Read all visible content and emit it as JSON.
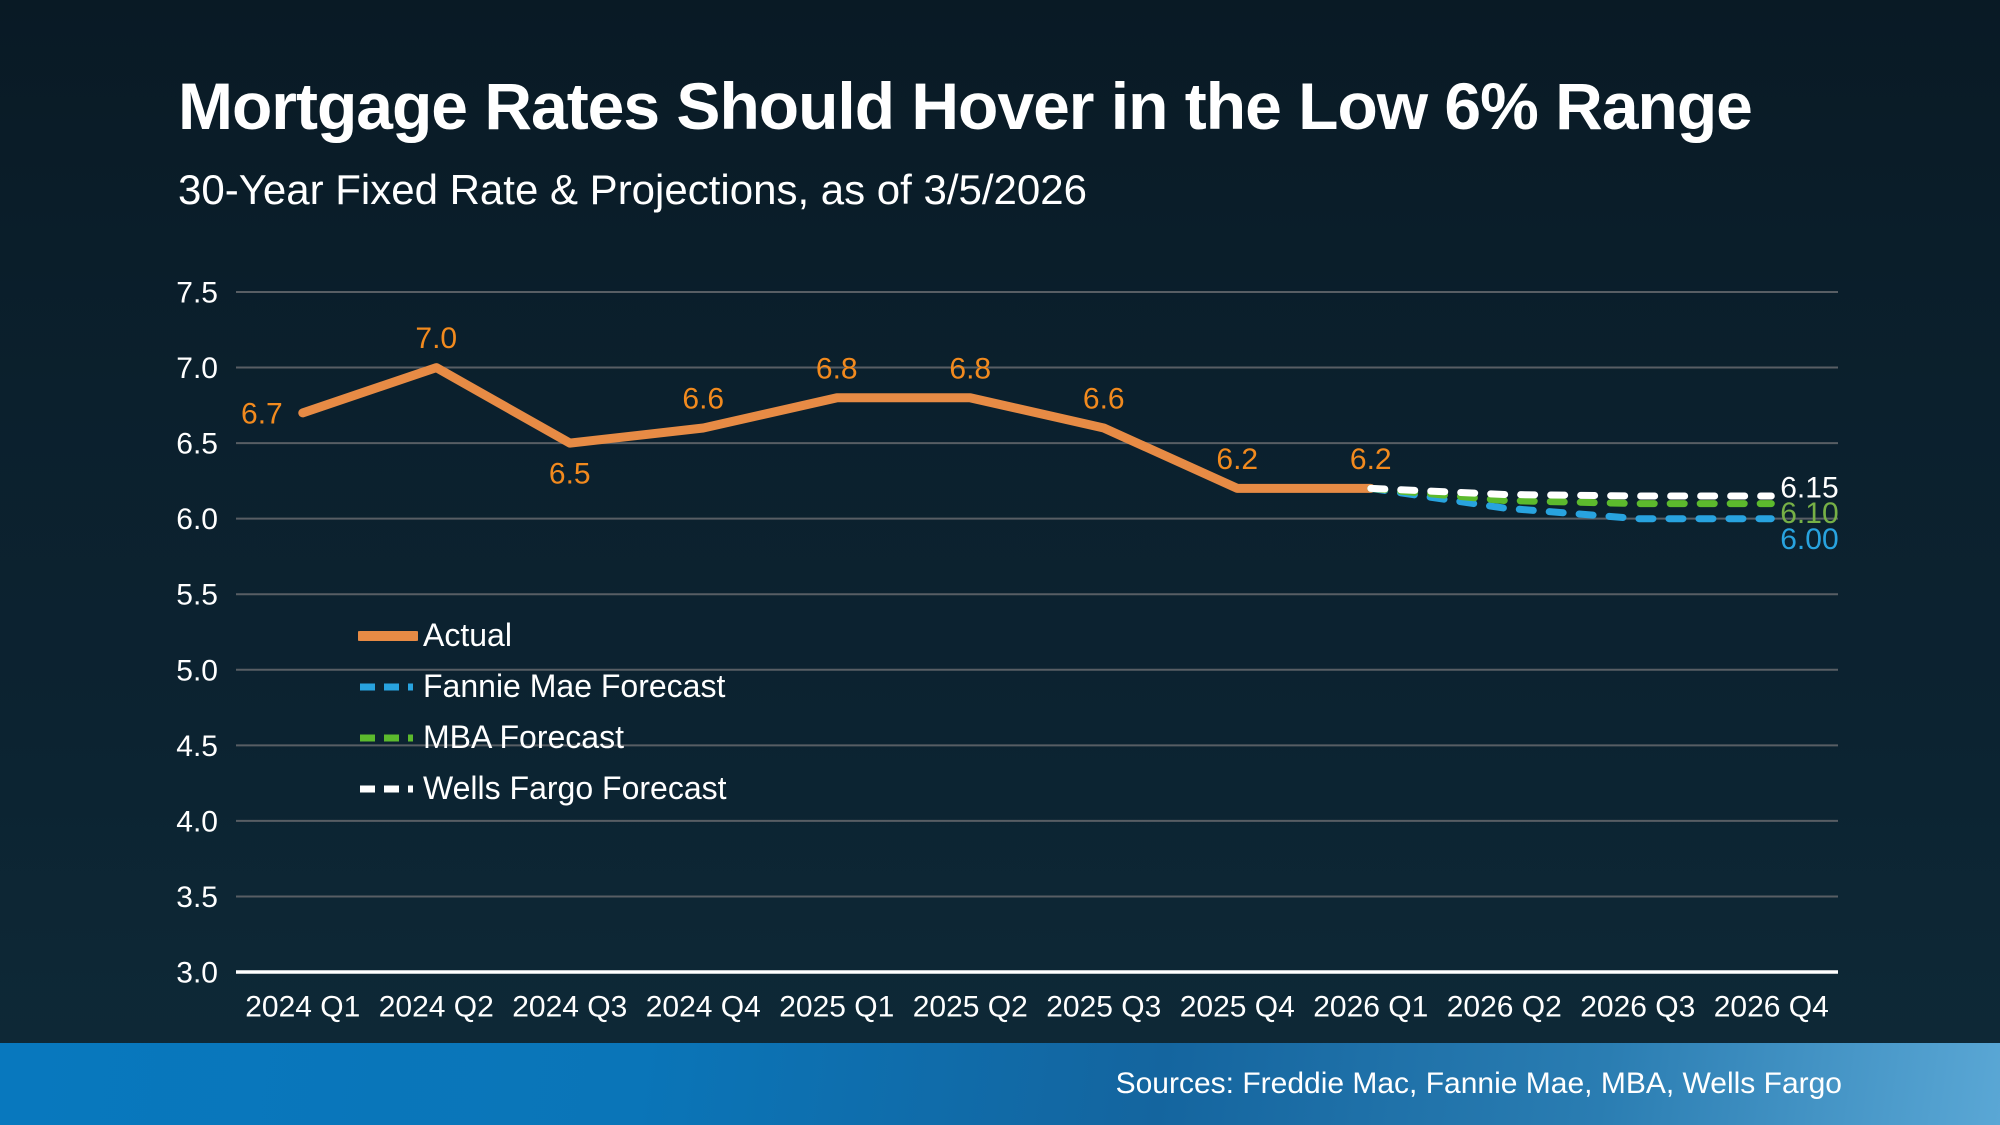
{
  "slide": {
    "title": "Mortgage Rates Should Hover in the Low 6% Range",
    "subtitle": "30-Year Fixed Rate & Projections, as of 3/5/2026",
    "sources": "Sources: Freddie Mac, Fannie Mae, MBA, Wells Fargo"
  },
  "colors": {
    "text": "#FFFFFF",
    "gridline": "#585E64",
    "axis_line": "#FFFFFF",
    "actual_line": "#E78B45",
    "data_label": "#F28A1E",
    "fannie_blue": "#28A3DF",
    "mba_green": "#5CBA2D",
    "mba_label_green": "#76B046",
    "wells_white": "#FFFFFF",
    "footer_blue": "#0878BE"
  },
  "chart_data": {
    "type": "line",
    "title": "30-Year Fixed Rate & Projections, as of 3/5/2026",
    "categories": [
      "2024 Q1",
      "2024 Q2",
      "2024 Q3",
      "2024 Q4",
      "2025 Q1",
      "2025 Q2",
      "2025 Q3",
      "2025 Q4",
      "2026 Q1",
      "2026 Q2",
      "2026 Q3",
      "2026 Q4"
    ],
    "ylim": [
      3.0,
      7.5
    ],
    "ytick_step": 0.5,
    "grid": true,
    "legend_position": "inside-left",
    "series": [
      {
        "name": "Actual",
        "style": "solid",
        "color_key": "actual_line",
        "values": [
          6.7,
          7.0,
          6.5,
          6.6,
          6.8,
          6.8,
          6.6,
          6.2,
          6.2,
          null,
          null,
          null
        ]
      },
      {
        "name": "Fannie Mae Forecast",
        "style": "dashed",
        "color_key": "fannie_blue",
        "values": [
          null,
          null,
          null,
          null,
          null,
          null,
          null,
          null,
          6.2,
          6.07,
          6.0,
          6.0
        ],
        "end_label": "6.00",
        "end_label_color_key": "fannie_blue",
        "end_label_offset": 20
      },
      {
        "name": "MBA Forecast",
        "style": "dashed",
        "color_key": "mba_green",
        "values": [
          null,
          null,
          null,
          null,
          null,
          null,
          null,
          null,
          6.2,
          6.12,
          6.1,
          6.1
        ],
        "end_label": "6.10",
        "end_label_color_key": "mba_label_green",
        "end_label_offset": 9
      },
      {
        "name": "Wells Fargo Forecast",
        "style": "dashed",
        "color_key": "wells_white",
        "values": [
          null,
          null,
          null,
          null,
          null,
          null,
          null,
          null,
          6.2,
          6.16,
          6.15,
          6.15
        ],
        "end_label": "6.15",
        "end_label_color_key": "wells_white",
        "end_label_offset": -9
      }
    ],
    "data_labels": [
      {
        "category_index": 0,
        "text": "6.7",
        "position": "left"
      },
      {
        "category_index": 1,
        "text": "7.0",
        "position": "above"
      },
      {
        "category_index": 2,
        "text": "6.5",
        "position": "below"
      },
      {
        "category_index": 3,
        "text": "6.6",
        "position": "above"
      },
      {
        "category_index": 4,
        "text": "6.8",
        "position": "above"
      },
      {
        "category_index": 5,
        "text": "6.8",
        "position": "above"
      },
      {
        "category_index": 6,
        "text": "6.6",
        "position": "above"
      },
      {
        "category_index": 7,
        "text": "6.2",
        "position": "above"
      },
      {
        "category_index": 8,
        "text": "6.2",
        "position": "above"
      }
    ]
  }
}
